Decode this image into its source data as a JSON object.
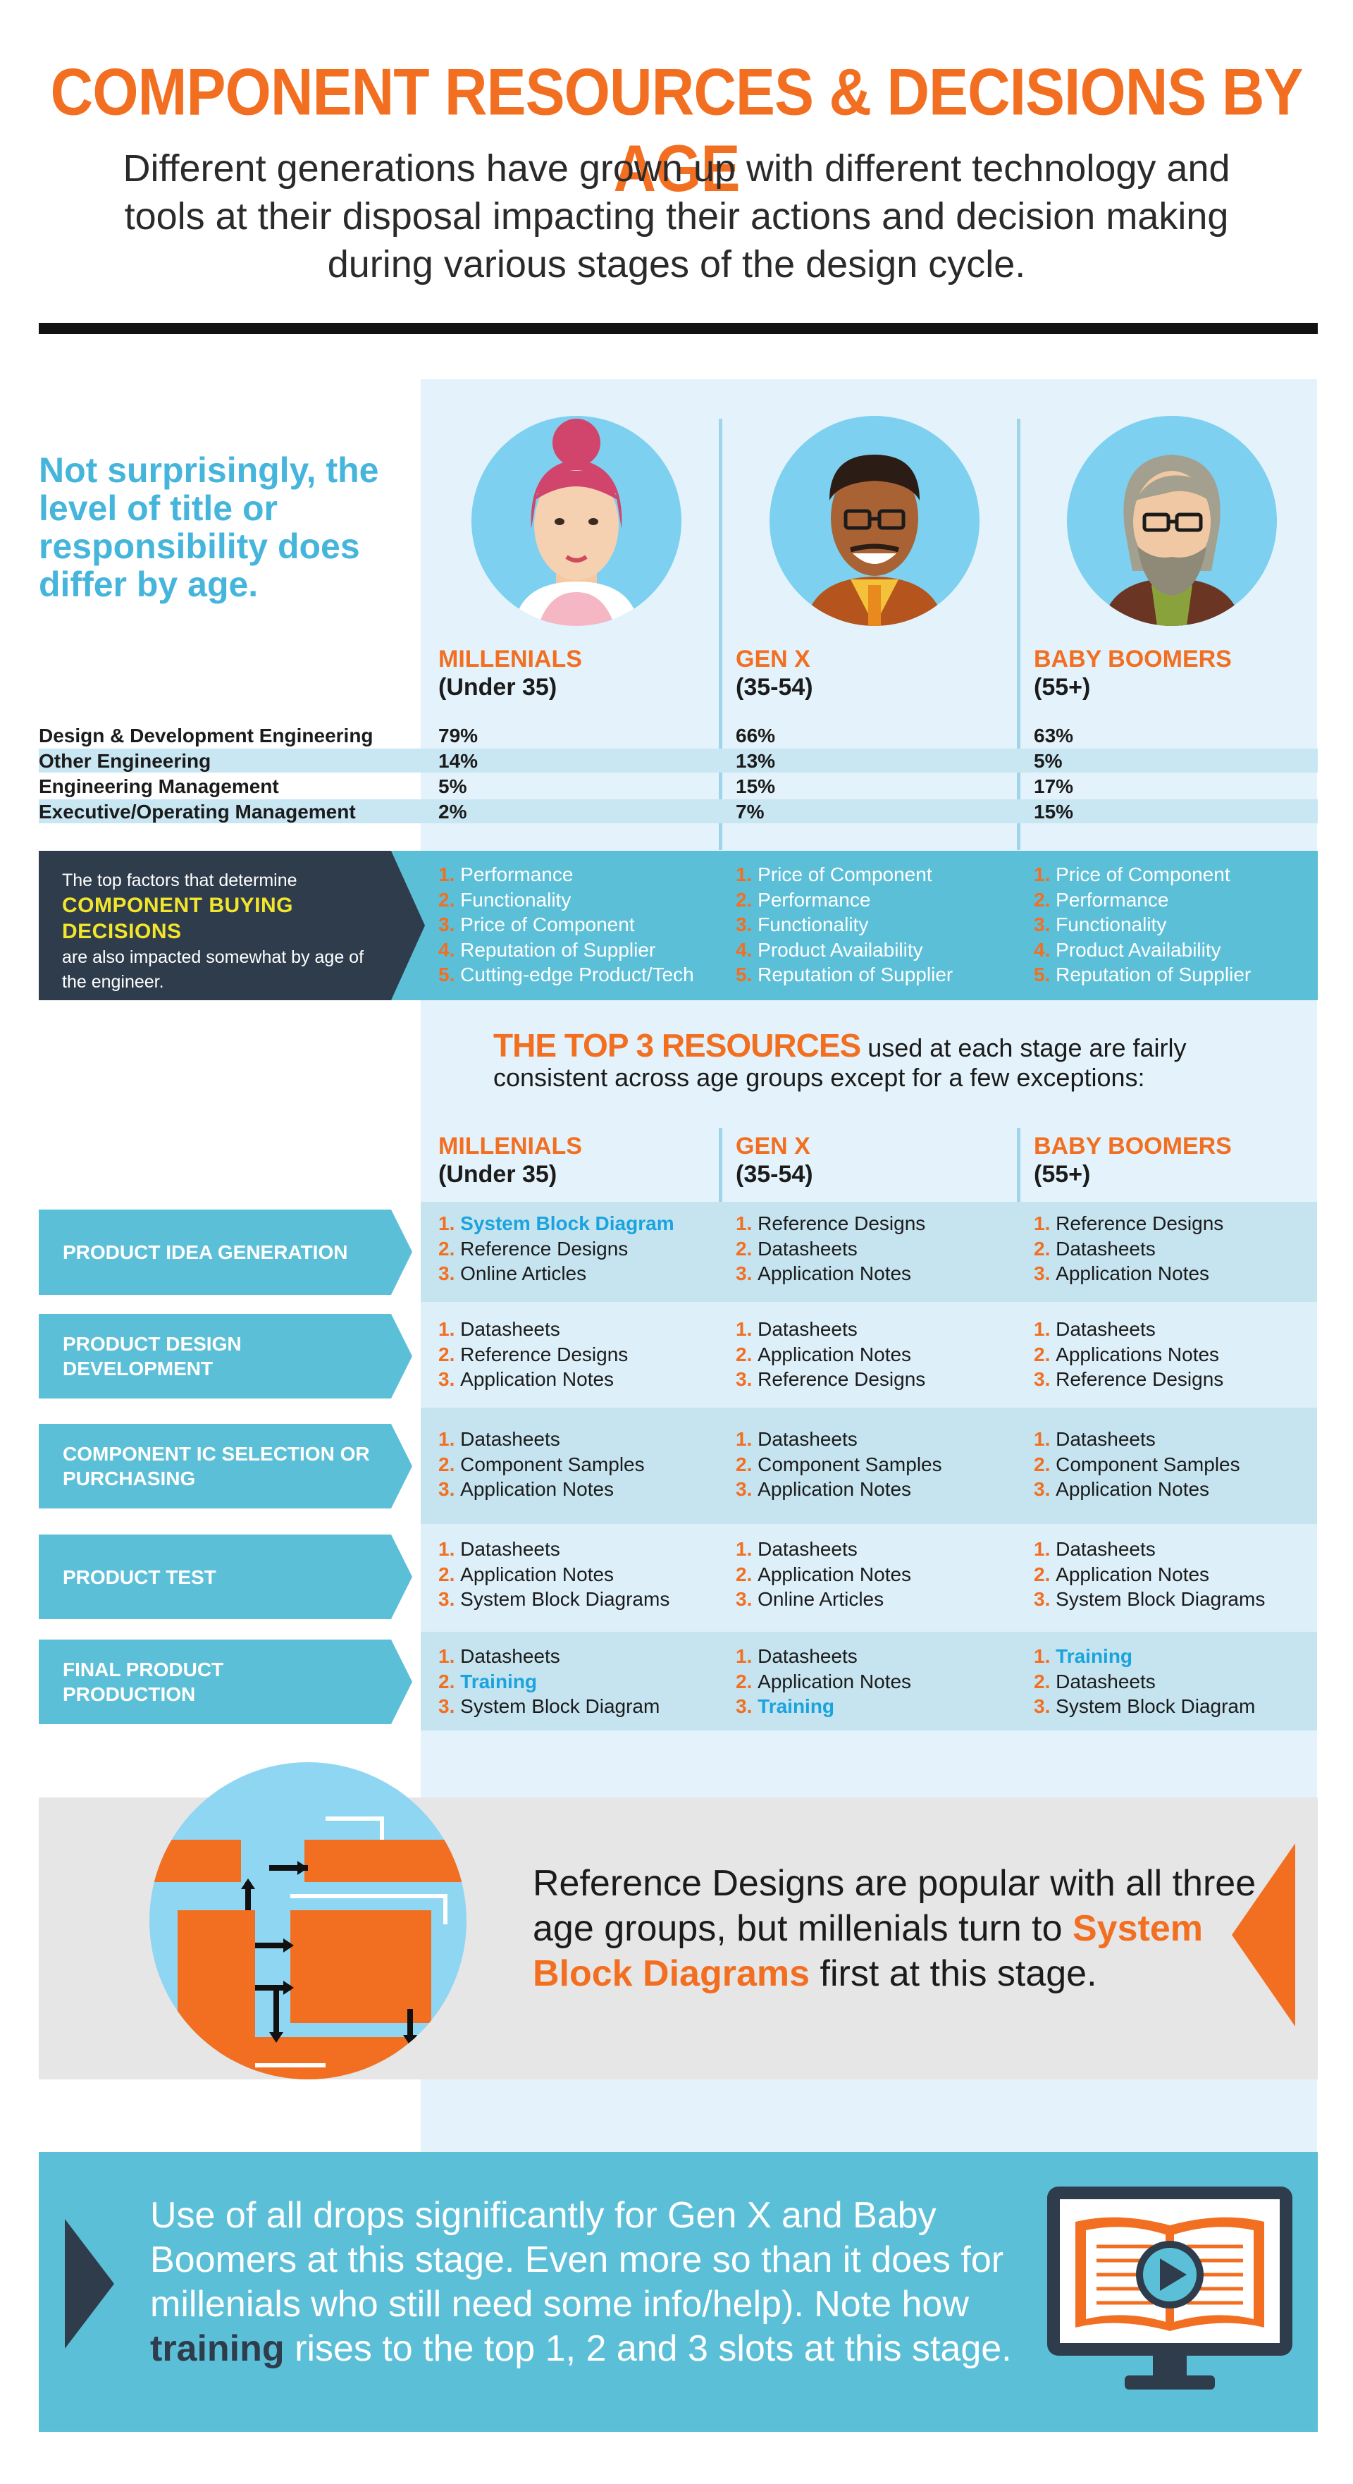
{
  "header": {
    "title": "COMPONENT RESOURCES & DECISIONS BY AGE",
    "subtitle": "Different generations have grown up with different technology and tools at their disposal impacting their actions and decision making during various stages of the design cycle."
  },
  "intro": "Not surprisingly, the level of title or responsibility does differ by age.",
  "columns": [
    {
      "name": "MILLENIALS",
      "age": "(Under 35)"
    },
    {
      "name": "GEN X",
      "age": "(35-54)"
    },
    {
      "name": "BABY BOOMERS",
      "age": "(55+)"
    }
  ],
  "titles": [
    {
      "label": "Design & Development Engineering",
      "values": [
        "79%",
        "66%",
        "63%"
      ]
    },
    {
      "label": "Other Engineering",
      "values": [
        "14%",
        "13%",
        "5%"
      ]
    },
    {
      "label": "Engineering Management",
      "values": [
        "5%",
        "15%",
        "17%"
      ]
    },
    {
      "label": "Executive/Operating Management",
      "values": [
        "2%",
        "7%",
        "15%"
      ]
    }
  ],
  "buying": {
    "text_before": "The top factors that determine",
    "emphasis": "COMPONENT BUYING DECISIONS",
    "text_after": "are also impacted somewhat by age of the engineer.",
    "lists": [
      [
        "Performance",
        "Functionality",
        "Price of Component",
        "Reputation of Supplier",
        "Cutting-edge Product/Tech"
      ],
      [
        "Price of Component",
        "Performance",
        "Functionality",
        "Product Availability",
        "Reputation of Supplier"
      ],
      [
        "Price of Component",
        "Performance",
        "Functionality",
        "Product Availability",
        "Reputation of Supplier"
      ]
    ]
  },
  "resources": {
    "heading_big": "THE TOP 3 RESOURCES",
    "heading_rest": "used at each stage are fairly consistent across age groups except for a few exceptions:",
    "stages": [
      {
        "label": "PRODUCT IDEA GENERATION",
        "cols": [
          [
            "System Block Diagram",
            "Reference Designs",
            "Online Articles"
          ],
          [
            "Reference Designs",
            "Datasheets",
            "Application Notes"
          ],
          [
            "Reference Designs",
            "Datasheets",
            "Application Notes"
          ]
        ]
      },
      {
        "label": "PRODUCT DESIGN DEVELOPMENT",
        "cols": [
          [
            "Datasheets",
            "Reference Designs",
            "Application Notes"
          ],
          [
            "Datasheets",
            "Application Notes",
            "Reference Designs"
          ],
          [
            "Datasheets",
            "Applications Notes",
            "Reference Designs"
          ]
        ]
      },
      {
        "label": "COMPONENT IC SELECTION OR PURCHASING",
        "cols": [
          [
            "Datasheets",
            "Component Samples",
            "Application Notes"
          ],
          [
            "Datasheets",
            "Component Samples",
            "Application Notes"
          ],
          [
            "Datasheets",
            "Component Samples",
            "Application Notes"
          ]
        ]
      },
      {
        "label": "PRODUCT TEST",
        "cols": [
          [
            "Datasheets",
            "Application Notes",
            "System Block Diagrams"
          ],
          [
            "Datasheets",
            "Application Notes",
            "Online Articles"
          ],
          [
            "Datasheets",
            "Application Notes",
            "System Block Diagrams"
          ]
        ]
      },
      {
        "label": "FINAL PRODUCT PRODUCTION",
        "cols": [
          [
            "Datasheets",
            "Training",
            "System Block Diagram"
          ],
          [
            "Datasheets",
            "Application Notes",
            "Training"
          ],
          [
            "Training",
            "Datasheets",
            "System Block Diagram"
          ]
        ]
      }
    ]
  },
  "callout_reference": {
    "text_before": "Reference Designs are popular with all three age groups, but millenials turn to",
    "emphasis": "System Block Diagrams",
    "text_after": "first at this stage."
  },
  "callout_training": {
    "text_before": "Use of all drops significantly for Gen X and Baby Boomers at this stage. Even more so than it does for millenials who still need some info/help). Note how",
    "emphasis": "training",
    "text_after": "rises to the top 1, 2 and 3 slots at this stage."
  },
  "colors": {
    "orange": "#f26f21",
    "blue": "#5cbfd8",
    "light_blue": "#e4f3fb",
    "navy": "#2f3c4c",
    "highlight": "#1aa3dc"
  }
}
